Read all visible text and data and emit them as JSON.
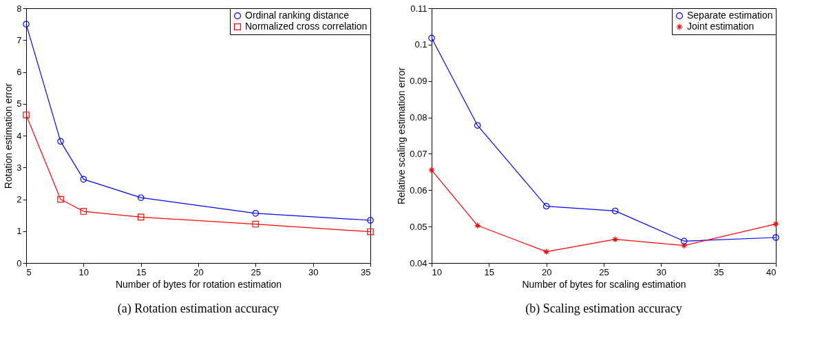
{
  "chart_data": [
    {
      "type": "line",
      "title": "(a) Rotation estimation accuracy",
      "xlabel": "Number of bytes for rotation estimation",
      "ylabel": "Rotation estimation error",
      "x": [
        5,
        8,
        10,
        15,
        25,
        35
      ],
      "series": [
        {
          "name": "Ordinal ranking distance",
          "color": "#0000ff",
          "marker": "circle",
          "values": [
            7.5,
            3.82,
            2.63,
            2.05,
            1.56,
            1.34
          ]
        },
        {
          "name": "Normalized cross correlation",
          "color": "#ff0000",
          "marker": "square",
          "values": [
            4.65,
            2.0,
            1.62,
            1.44,
            1.22,
            0.98
          ]
        }
      ],
      "xlim": [
        5,
        35
      ],
      "xticks": [
        5,
        10,
        15,
        20,
        25,
        30,
        35
      ],
      "ylim": [
        0,
        8
      ],
      "yticks": [
        0,
        1,
        2,
        3,
        4,
        5,
        6,
        7,
        8
      ],
      "grid": false,
      "legend": "top right",
      "line_style": "solid"
    },
    {
      "type": "line",
      "title": "(b) Scaling estimation accuracy",
      "xlabel": "Number of bytes for scaling estimation",
      "ylabel": "Relative scaling estimation error",
      "x": [
        10,
        14,
        20,
        26,
        32,
        40
      ],
      "series": [
        {
          "name": "Separate estimation",
          "color": "#0000ff",
          "marker": "circle",
          "values": [
            0.1018,
            0.0778,
            0.0556,
            0.0543,
            0.046,
            0.047
          ]
        },
        {
          "name": "Joint estimation",
          "color": "#ff0000",
          "marker": "cross",
          "values": [
            0.0655,
            0.0503,
            0.0431,
            0.0465,
            0.0448,
            0.0507
          ]
        }
      ],
      "xlim": [
        10,
        40
      ],
      "xticks": [
        10,
        15,
        20,
        25,
        30,
        35,
        40
      ],
      "ylim": [
        0.04,
        0.11
      ],
      "yticks": [
        0.04,
        0.05,
        0.06,
        0.07,
        0.08,
        0.09,
        0.1,
        0.11
      ],
      "grid": false,
      "legend": "top right",
      "line_style": "solid"
    }
  ]
}
